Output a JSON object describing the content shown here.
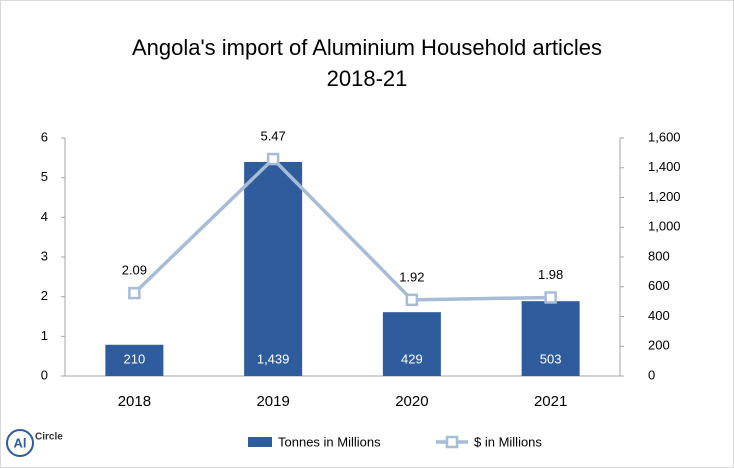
{
  "chart_data": {
    "type": "bar-line",
    "title": [
      "Angola's import of Aluminium Household articles",
      "2018-21"
    ],
    "categories": [
      "2018",
      "2019",
      "2020",
      "2021"
    ],
    "series": [
      {
        "name": "Tonnes in Millions",
        "type": "bar",
        "axis": "y2",
        "color": "#2f5c9c",
        "values": [
          210,
          1439,
          429,
          503
        ],
        "value_labels": [
          "210",
          "1,439",
          "429",
          "503"
        ]
      },
      {
        "name": "$ in Millions",
        "type": "line",
        "axis": "y",
        "color": "#a7bcd7",
        "values": [
          2.09,
          5.47,
          1.92,
          1.98
        ]
      }
    ],
    "ylim": [
      0,
      6
    ],
    "yticks": [
      0,
      1,
      2,
      3,
      4,
      5,
      6
    ],
    "y2lim": [
      0,
      1600
    ],
    "y2ticks": [
      0,
      200,
      400,
      600,
      800,
      {
        "value": 1000,
        "label": "1,000"
      },
      {
        "value": 1200,
        "label": "1,200"
      },
      {
        "value": 1400,
        "label": "1,400"
      },
      {
        "value": 1600,
        "label": "1,600"
      }
    ],
    "legend": "bottom"
  },
  "logo": {
    "mark": "Al",
    "name": "Circle"
  }
}
